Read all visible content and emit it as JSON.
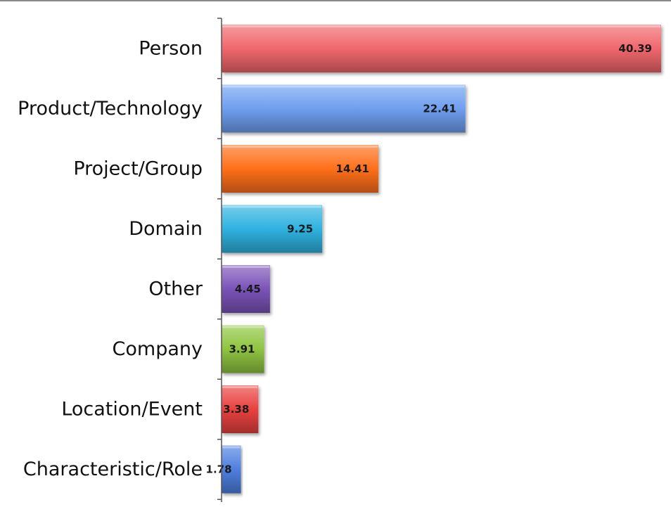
{
  "chart_data": {
    "type": "bar",
    "orientation": "horizontal",
    "categories": [
      "Person",
      "Product/Technology",
      "Project/Group",
      "Domain",
      "Other",
      "Company",
      "Location/Event",
      "Characteristic/Role"
    ],
    "values": [
      40.39,
      22.41,
      14.41,
      9.25,
      4.45,
      3.91,
      3.38,
      1.78
    ],
    "value_labels": [
      "40.39",
      "22.41",
      "14.41",
      "9.25",
      "4.45",
      "3.91",
      "3.38",
      "1.78"
    ],
    "colors": [
      "#f0676c",
      "#6f9ff0",
      "#ff6f1a",
      "#2fb2e0",
      "#7b53b8",
      "#8fc440",
      "#e8413f",
      "#4f7fe0"
    ],
    "xlim": [
      0,
      40.39
    ],
    "grid": false,
    "legend": "none",
    "title": "",
    "xlabel": "",
    "ylabel": ""
  }
}
